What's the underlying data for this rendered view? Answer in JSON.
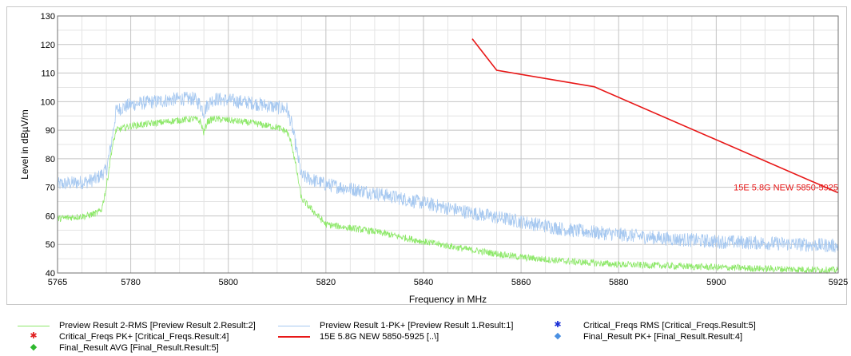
{
  "chart_data": {
    "type": "line",
    "xlabel": "Frequency in MHz",
    "ylabel": "Level in dBµV/m",
    "xlim": [
      5765,
      5925
    ],
    "ylim": [
      40,
      130
    ],
    "x_ticks": [
      5765,
      5780,
      5800,
      5820,
      5840,
      5860,
      5880,
      5900,
      5925
    ],
    "y_ticks": [
      40,
      50,
      60,
      70,
      80,
      90,
      100,
      110,
      120,
      130
    ],
    "grid": true,
    "series": [
      {
        "name": "Preview Result 1-PK+",
        "color": "#a6c8f0",
        "noise": 2.5,
        "x": [
          5765,
          5768,
          5771,
          5773,
          5775,
          5776,
          5777,
          5780,
          5785,
          5790,
          5793,
          5794.3,
          5795,
          5795.7,
          5797,
          5800,
          5805,
          5810,
          5812,
          5813,
          5814,
          5815,
          5820,
          5830,
          5840,
          5850,
          5860,
          5870,
          5880,
          5890,
          5900,
          5910,
          5925
        ],
        "values": [
          71,
          71.5,
          72,
          73,
          76,
          85,
          97,
          99,
          100,
          101,
          101,
          99,
          96,
          99,
          101,
          100.5,
          99.5,
          98,
          97.5,
          92,
          83,
          74,
          71,
          68,
          64.5,
          61,
          58,
          55,
          53.5,
          52,
          51,
          50.5,
          49.5
        ]
      },
      {
        "name": "Preview Result 2-RMS",
        "color": "#8ee86a",
        "noise": 1.2,
        "x": [
          5765,
          5768,
          5771,
          5773,
          5774,
          5775,
          5776,
          5777,
          5780,
          5785,
          5790,
          5793,
          5794.3,
          5795,
          5795.7,
          5797,
          5800,
          5805,
          5810,
          5812,
          5813,
          5814,
          5815,
          5820,
          5830,
          5840,
          5850,
          5860,
          5870,
          5880,
          5890,
          5900,
          5910,
          5925
        ],
        "values": [
          59,
          59.5,
          60,
          61,
          62,
          70,
          82,
          90,
          91.5,
          92.5,
          93.5,
          94,
          93,
          89,
          93,
          94,
          93.5,
          92.5,
          91,
          89.5,
          85,
          76,
          66,
          57,
          54.5,
          51,
          48,
          45.5,
          44,
          43,
          42.5,
          42,
          41.5,
          41
        ]
      },
      {
        "name": "15E 5.8G NEW 5850-5925",
        "color": "#e81818",
        "noise": 0,
        "x": [
          5850,
          5855,
          5875,
          5925
        ],
        "values": [
          122,
          111,
          105.2,
          68.1
        ]
      }
    ],
    "annotations": [
      {
        "text": "15E 5.8G NEW 5850-5925",
        "x": 5925,
        "y": 70,
        "color": "#e81818"
      }
    ],
    "legend": {
      "placement": "bottom",
      "entries": [
        {
          "label": "Preview Result 2-RMS   [Preview Result 2.Result:2]",
          "marker": "line",
          "color": "#8ee86a"
        },
        {
          "label": "Preview Result 1-PK+   [Preview Result 1.Result:1]",
          "marker": "line",
          "color": "#a6c8f0"
        },
        {
          "label": "Critical_Freqs RMS   [Critical_Freqs.Result:5]",
          "marker": "star",
          "color": "#1a2fd6"
        },
        {
          "label": "Critical_Freqs PK+   [Critical_Freqs.Result:4]",
          "marker": "star",
          "color": "#e02020"
        },
        {
          "label": "15E 5.8G NEW 5850-5925   [..\\]",
          "marker": "line",
          "color": "#e81818"
        },
        {
          "label": "Final_Result PK+   [Final_Result.Result:4]",
          "marker": "diamond",
          "color": "#4a90e2"
        },
        {
          "label": "Final_Result AVG   [Final_Result.Result:5]",
          "marker": "diamond",
          "color": "#2eb82e"
        }
      ]
    }
  }
}
